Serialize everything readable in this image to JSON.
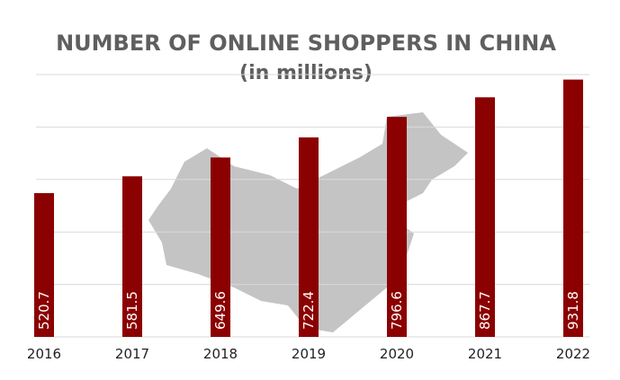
{
  "chart_data": {
    "type": "bar",
    "title": "NUMBER OF ONLINE SHOPPERS IN CHINA",
    "subtitle": "(in millions)",
    "categories": [
      "2016",
      "2017",
      "2018",
      "2019",
      "2020",
      "2021",
      "2022"
    ],
    "values": [
      520.7,
      581.5,
      649.6,
      722.4,
      796.6,
      867.7,
      931.8
    ],
    "color": "#8b0000",
    "ylim": [
      0,
      950
    ],
    "yticks": [
      0,
      190,
      380,
      570,
      760,
      950
    ],
    "grid": true,
    "data_labels": true
  }
}
